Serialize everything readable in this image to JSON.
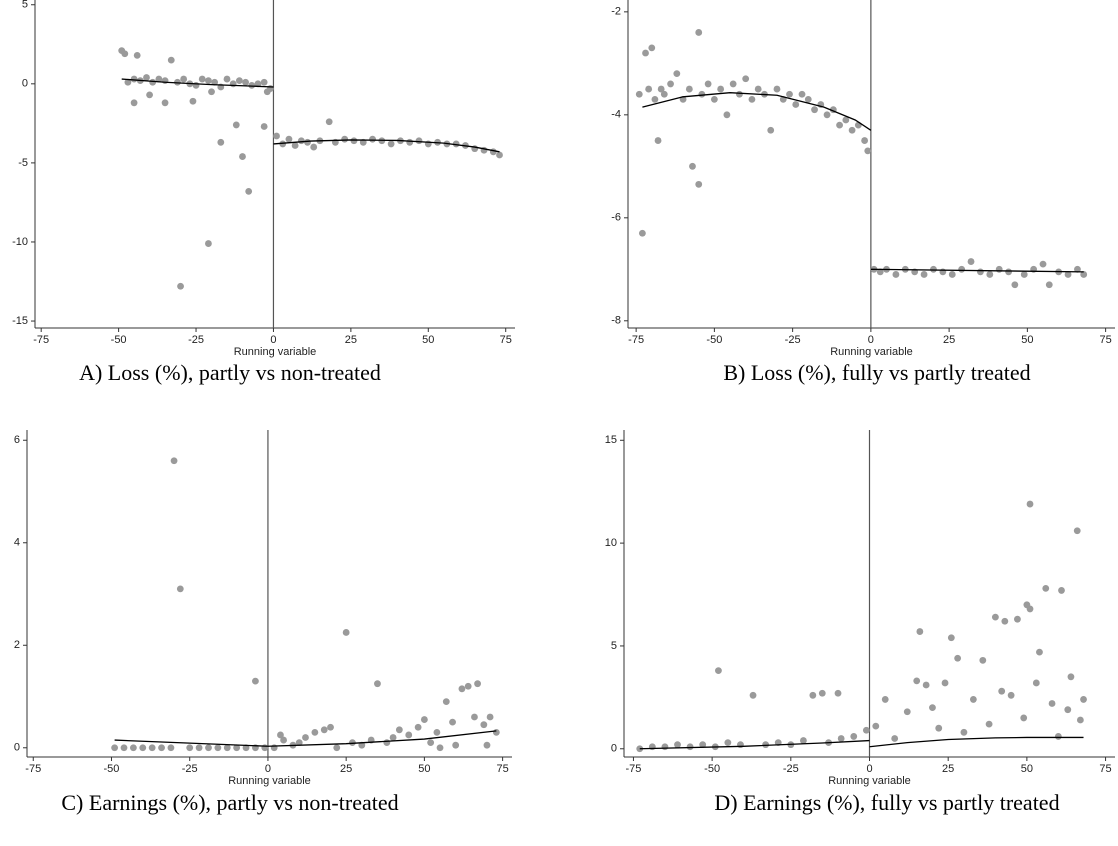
{
  "chart_data": [
    {
      "type": "scatter",
      "caption": "A) Loss (%), partly vs non-treated",
      "xlabel": "Running variable",
      "color": "#9a9a9a",
      "line_color": "#000000",
      "cutoff": 0,
      "xlim": [
        -77,
        78
      ],
      "ylim": [
        -15.44,
        5.3
      ],
      "xticks": [
        -75,
        -50,
        -25,
        0,
        25,
        50,
        75
      ],
      "yticks": [
        5,
        0,
        -5,
        -10,
        -15
      ],
      "x": [
        -49,
        -48,
        -44,
        -47,
        -45,
        -43,
        -41,
        -39,
        -37,
        -35,
        -33,
        -31,
        -29,
        -27,
        -25,
        -23,
        -21,
        -19,
        -17,
        -15,
        -13,
        -11,
        -9,
        -7,
        -5,
        -3,
        -2,
        -1,
        -30,
        -21,
        -8,
        -10,
        -17,
        -3,
        -12,
        -45,
        -35,
        -26,
        -40,
        -20,
        1,
        3,
        5,
        7,
        9,
        11,
        13,
        15,
        18,
        20,
        23,
        26,
        29,
        32,
        35,
        38,
        41,
        44,
        47,
        50,
        53,
        56,
        59,
        62,
        65,
        68,
        71,
        73
      ],
      "values": [
        2.1,
        1.9,
        1.8,
        0.1,
        0.3,
        0.2,
        0.4,
        0.1,
        0.3,
        0.2,
        1.5,
        0.1,
        0.3,
        0.0,
        -0.1,
        0.3,
        0.2,
        0.1,
        -0.2,
        0.3,
        0.0,
        0.2,
        0.1,
        -0.1,
        0.0,
        0.1,
        -0.5,
        -0.3,
        -12.8,
        -10.1,
        -6.8,
        -4.6,
        -3.7,
        -2.7,
        -2.6,
        -1.2,
        -1.2,
        -1.1,
        -0.7,
        -0.5,
        -3.3,
        -3.8,
        -3.5,
        -3.9,
        -3.6,
        -3.7,
        -4.0,
        -3.6,
        -2.4,
        -3.7,
        -3.5,
        -3.6,
        -3.7,
        -3.5,
        -3.6,
        -3.8,
        -3.6,
        -3.7,
        -3.6,
        -3.8,
        -3.7,
        -3.8,
        -3.8,
        -3.9,
        -4.1,
        -4.2,
        -4.3,
        -4.5
      ],
      "fits": [
        {
          "x": [
            -49,
            -35,
            -20,
            -10,
            0
          ],
          "values": [
            0.3,
            0.1,
            -0.05,
            -0.12,
            -0.2
          ]
        },
        {
          "x": [
            0,
            12,
            25,
            40,
            55,
            65,
            73
          ],
          "values": [
            -3.8,
            -3.62,
            -3.55,
            -3.58,
            -3.75,
            -4.0,
            -4.3
          ]
        }
      ]
    },
    {
      "type": "scatter",
      "caption": "B) Loss (%), fully vs partly treated",
      "xlabel": "Running variable",
      "color": "#9a9a9a",
      "line_color": "#000000",
      "cutoff": 0,
      "xlim": [
        -77.6,
        78
      ],
      "ylim": [
        -8.14,
        -1.77
      ],
      "xticks": [
        -75,
        -50,
        -25,
        0,
        25,
        50,
        75
      ],
      "yticks": [
        -2,
        -4,
        -6,
        -8
      ],
      "x": [
        -74,
        -73,
        -72,
        -71,
        -70,
        -69,
        -68,
        -67,
        -66,
        -64,
        -62,
        -60,
        -58,
        -57,
        -55,
        -55,
        -54,
        -52,
        -50,
        -48,
        -46,
        -44,
        -42,
        -40,
        -38,
        -36,
        -34,
        -32,
        -30,
        -28,
        -26,
        -24,
        -22,
        -20,
        -18,
        -16,
        -14,
        -12,
        -10,
        -8,
        -6,
        -4,
        -2,
        -1,
        1,
        3,
        5,
        8,
        11,
        14,
        17,
        20,
        23,
        26,
        29,
        32,
        35,
        38,
        41,
        44,
        46,
        49,
        52,
        55,
        57,
        60,
        63,
        66,
        68
      ],
      "values": [
        -3.6,
        -6.3,
        -2.8,
        -3.5,
        -2.7,
        -3.7,
        -4.5,
        -3.5,
        -3.6,
        -3.4,
        -3.2,
        -3.7,
        -3.5,
        -5.0,
        -5.35,
        -2.4,
        -3.6,
        -3.4,
        -3.7,
        -3.5,
        -4.0,
        -3.4,
        -3.6,
        -3.3,
        -3.7,
        -3.5,
        -3.6,
        -4.3,
        -3.5,
        -3.7,
        -3.6,
        -3.8,
        -3.6,
        -3.7,
        -3.9,
        -3.8,
        -4.0,
        -3.9,
        -4.2,
        -4.1,
        -4.3,
        -4.2,
        -4.5,
        -4.7,
        -7.0,
        -7.05,
        -7.0,
        -7.1,
        -7.0,
        -7.05,
        -7.1,
        -7.0,
        -7.05,
        -7.1,
        -7.0,
        -6.85,
        -7.05,
        -7.1,
        -7.0,
        -7.05,
        -7.3,
        -7.1,
        -7.0,
        -6.9,
        -7.3,
        -7.05,
        -7.1,
        -7.0,
        -7.1
      ],
      "fits": [
        {
          "x": [
            -73,
            -60,
            -45,
            -30,
            -15,
            -5,
            0
          ],
          "values": [
            -3.85,
            -3.65,
            -3.57,
            -3.62,
            -3.85,
            -4.1,
            -4.3
          ]
        },
        {
          "x": [
            0,
            68
          ],
          "values": [
            -7.0,
            -7.05
          ]
        }
      ]
    },
    {
      "type": "scatter",
      "caption": "C) Earnings (%), partly vs non-treated",
      "xlabel": "Running variable",
      "color": "#9a9a9a",
      "line_color": "#000000",
      "cutoff": 0,
      "xlim": [
        -77,
        78
      ],
      "ylim": [
        -0.18,
        6.2
      ],
      "xticks": [
        -75,
        -50,
        -25,
        0,
        25,
        50,
        75
      ],
      "yticks": [
        0,
        2,
        4,
        6
      ],
      "x": [
        -49,
        -46,
        -43,
        -40,
        -37,
        -34,
        -31,
        -25,
        -22,
        -19,
        -16,
        -13,
        -10,
        -7,
        -4,
        -1,
        -30,
        -28,
        -4,
        2,
        4,
        5,
        8,
        10,
        12,
        15,
        18,
        20,
        22,
        25,
        27,
        30,
        33,
        35,
        38,
        40,
        42,
        45,
        48,
        50,
        52,
        54,
        55,
        57,
        59,
        60,
        62,
        64,
        66,
        67,
        69,
        70,
        71,
        73
      ],
      "values": [
        0,
        0,
        0,
        0,
        0,
        0,
        0,
        0,
        0,
        0,
        0,
        0,
        0,
        0,
        0,
        0,
        5.6,
        3.1,
        1.3,
        0.0,
        0.25,
        0.15,
        0.05,
        0.1,
        0.2,
        0.3,
        0.35,
        0.4,
        0.0,
        2.25,
        0.1,
        0.05,
        0.15,
        1.25,
        0.1,
        0.2,
        0.35,
        0.25,
        0.4,
        0.55,
        0.1,
        0.3,
        0.0,
        0.9,
        0.5,
        0.05,
        1.15,
        1.2,
        0.6,
        1.25,
        0.45,
        0.05,
        0.6,
        0.3
      ],
      "fits": [
        {
          "x": [
            -49,
            -25,
            0
          ],
          "values": [
            0.15,
            0.09,
            0.03
          ]
        },
        {
          "x": [
            0,
            25,
            50,
            73
          ],
          "values": [
            0.03,
            0.08,
            0.17,
            0.33
          ]
        }
      ]
    },
    {
      "type": "scatter",
      "caption": "D) Earnings (%), fully vs partly treated",
      "xlabel": "Running variable",
      "color": "#9a9a9a",
      "line_color": "#000000",
      "cutoff": 0,
      "xlim": [
        -78,
        78
      ],
      "ylim": [
        -0.4,
        15.5
      ],
      "xticks": [
        -75,
        -50,
        -25,
        0,
        25,
        50,
        75
      ],
      "yticks": [
        0,
        5,
        10,
        15
      ],
      "x": [
        -73,
        -69,
        -65,
        -61,
        -57,
        -53,
        -49,
        -45,
        -41,
        -33,
        -29,
        -25,
        -21,
        -13,
        -9,
        -5,
        -1,
        -48,
        -37,
        -15,
        -10,
        -18,
        2,
        5,
        8,
        12,
        15,
        16,
        18,
        20,
        22,
        24,
        26,
        28,
        30,
        33,
        36,
        38,
        40,
        42,
        43,
        45,
        47,
        49,
        50,
        51,
        51,
        53,
        54,
        56,
        58,
        60,
        61,
        63,
        64,
        66,
        67,
        68
      ],
      "values": [
        0.0,
        0.1,
        0.1,
        0.2,
        0.1,
        0.2,
        0.1,
        0.3,
        0.2,
        0.2,
        0.3,
        0.2,
        0.4,
        0.3,
        0.5,
        0.6,
        0.9,
        3.8,
        2.6,
        2.7,
        2.7,
        2.6,
        1.1,
        2.4,
        0.5,
        1.8,
        3.3,
        5.7,
        3.1,
        2.0,
        1.0,
        3.2,
        5.4,
        4.4,
        0.8,
        2.4,
        4.3,
        1.2,
        6.4,
        2.8,
        6.2,
        2.6,
        6.3,
        1.5,
        7.0,
        11.9,
        6.8,
        3.2,
        4.7,
        7.8,
        2.2,
        0.6,
        7.7,
        1.9,
        3.5,
        10.6,
        1.4,
        2.4
      ],
      "fits": [
        {
          "x": [
            -73,
            -40,
            -15,
            0
          ],
          "values": [
            0.0,
            0.12,
            0.28,
            0.4
          ]
        },
        {
          "x": [
            0,
            12,
            25,
            40,
            50,
            68
          ],
          "values": [
            0.1,
            0.3,
            0.45,
            0.53,
            0.55,
            0.55
          ]
        }
      ]
    }
  ]
}
